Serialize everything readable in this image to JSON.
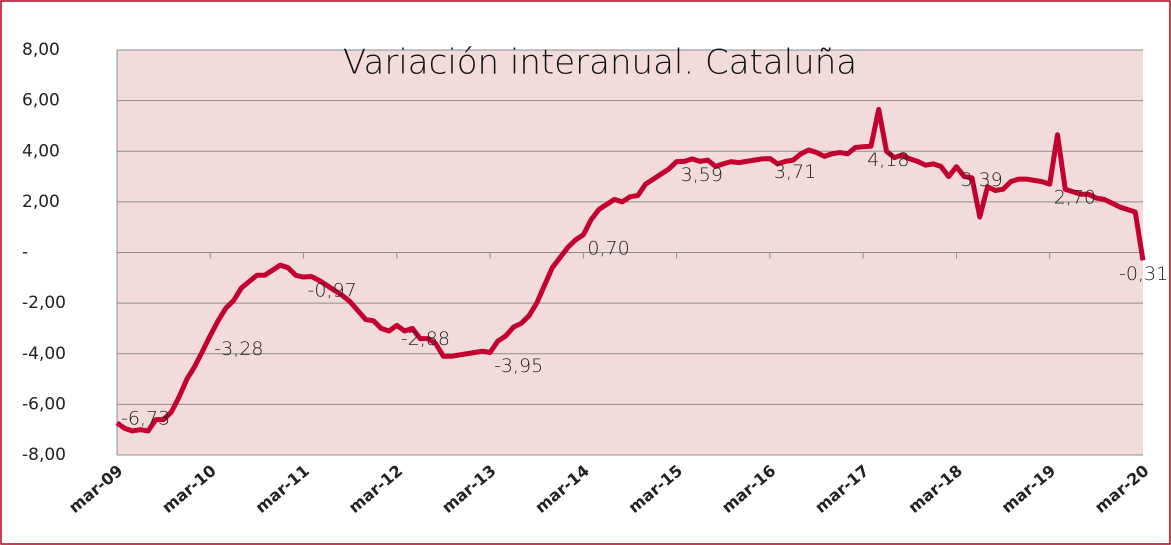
{
  "chart_data": {
    "type": "line",
    "title": "Variación interanual. Cataluña",
    "categories": [
      "mar-09",
      null,
      null,
      null,
      null,
      null,
      null,
      null,
      null,
      null,
      null,
      null,
      "mar-10",
      null,
      null,
      null,
      null,
      null,
      null,
      null,
      null,
      null,
      null,
      null,
      "mar-11",
      null,
      null,
      null,
      null,
      null,
      null,
      null,
      null,
      null,
      null,
      null,
      "mar-12",
      null,
      null,
      null,
      null,
      null,
      null,
      null,
      null,
      null,
      null,
      null,
      "mar-13",
      null,
      null,
      null,
      null,
      null,
      null,
      null,
      null,
      null,
      null,
      null,
      "mar-14",
      null,
      null,
      null,
      null,
      null,
      null,
      null,
      null,
      null,
      null,
      null,
      "mar-15",
      null,
      null,
      null,
      null,
      null,
      null,
      null,
      null,
      null,
      null,
      null,
      "mar-16",
      null,
      null,
      null,
      null,
      null,
      null,
      null,
      null,
      null,
      null,
      null,
      "mar-17",
      null,
      null,
      null,
      null,
      null,
      null,
      null,
      null,
      null,
      null,
      null,
      "mar-18",
      null,
      null,
      null,
      null,
      null,
      null,
      null,
      null,
      null,
      null,
      null,
      "mar-19",
      null,
      null,
      null,
      null,
      null,
      null,
      null,
      null,
      null,
      null,
      null,
      "mar-20"
    ],
    "series": [
      {
        "name": "Variación interanual",
        "color": "#c4002f",
        "values": [
          -6.73,
          -6.95,
          -7.05,
          -7.0,
          -7.05,
          -6.6,
          -6.6,
          -6.3,
          -5.7,
          -5.0,
          -4.5,
          -3.9,
          -3.28,
          -2.7,
          -2.2,
          -1.9,
          -1.4,
          -1.15,
          -0.9,
          -0.9,
          -0.7,
          -0.5,
          -0.6,
          -0.9,
          -0.97,
          -0.95,
          -1.1,
          -1.3,
          -1.5,
          -1.7,
          -1.95,
          -2.3,
          -2.65,
          -2.7,
          -3.0,
          -3.1,
          -2.88,
          -3.1,
          -3.0,
          -3.4,
          -3.4,
          -3.6,
          -4.1,
          -4.1,
          -4.05,
          -4.0,
          -3.95,
          -3.9,
          -3.95,
          -3.5,
          -3.3,
          -2.95,
          -2.8,
          -2.5,
          -2.0,
          -1.3,
          -0.6,
          -0.2,
          0.2,
          0.5,
          0.7,
          1.3,
          1.7,
          1.9,
          2.1,
          2.0,
          2.2,
          2.25,
          2.7,
          2.9,
          3.1,
          3.3,
          3.59,
          3.6,
          3.7,
          3.6,
          3.65,
          3.4,
          3.5,
          3.59,
          3.55,
          3.6,
          3.65,
          3.7,
          3.71,
          3.5,
          3.6,
          3.65,
          3.9,
          4.05,
          3.95,
          3.8,
          3.9,
          3.95,
          3.9,
          4.15,
          4.18,
          4.2,
          5.65,
          4.0,
          3.75,
          3.85,
          3.7,
          3.6,
          3.45,
          3.5,
          3.4,
          3.0,
          3.39,
          3.0,
          2.95,
          1.4,
          2.6,
          2.45,
          2.5,
          2.8,
          2.9,
          2.9,
          2.85,
          2.8,
          2.7,
          4.65,
          2.5,
          2.4,
          2.3,
          2.3,
          2.15,
          2.1,
          1.95,
          1.8,
          1.7,
          1.6,
          -0.31
        ],
        "value_labels": [
          "-6,73",
          null,
          null,
          null,
          null,
          null,
          null,
          null,
          null,
          null,
          null,
          null,
          "-3,28",
          null,
          null,
          null,
          null,
          null,
          null,
          null,
          null,
          null,
          null,
          null,
          "-0,97",
          null,
          null,
          null,
          null,
          null,
          null,
          null,
          null,
          null,
          null,
          null,
          "-2,88",
          null,
          null,
          null,
          null,
          null,
          null,
          null,
          null,
          null,
          null,
          null,
          "-3,95",
          null,
          null,
          null,
          null,
          null,
          null,
          null,
          null,
          null,
          null,
          null,
          "0,70",
          null,
          null,
          null,
          null,
          null,
          null,
          null,
          null,
          null,
          null,
          null,
          "3,59",
          null,
          null,
          null,
          null,
          null,
          null,
          null,
          null,
          null,
          null,
          null,
          "3,71",
          null,
          null,
          null,
          null,
          null,
          null,
          null,
          null,
          null,
          null,
          null,
          "4,18",
          null,
          null,
          null,
          null,
          null,
          null,
          null,
          null,
          null,
          null,
          null,
          "3,39",
          null,
          null,
          null,
          null,
          null,
          null,
          null,
          null,
          null,
          null,
          null,
          "2,70",
          null,
          null,
          null,
          null,
          null,
          null,
          null,
          null,
          null,
          null,
          null,
          "-0,31"
        ]
      }
    ],
    "ylim": [
      -8,
      8
    ],
    "yticks": [
      {
        "value": -8,
        "label": "-8,00"
      },
      {
        "value": -6,
        "label": "-6,00"
      },
      {
        "value": -4,
        "label": "-4,00"
      },
      {
        "value": -2,
        "label": "-2,00"
      },
      {
        "value": 0,
        "label": "-"
      },
      {
        "value": 2,
        "label": "2,00"
      },
      {
        "value": 4,
        "label": "4,00"
      },
      {
        "value": 6,
        "label": "6,00"
      },
      {
        "value": 8,
        "label": "8,00"
      }
    ],
    "grid": true,
    "background": "#f2dcdb"
  }
}
